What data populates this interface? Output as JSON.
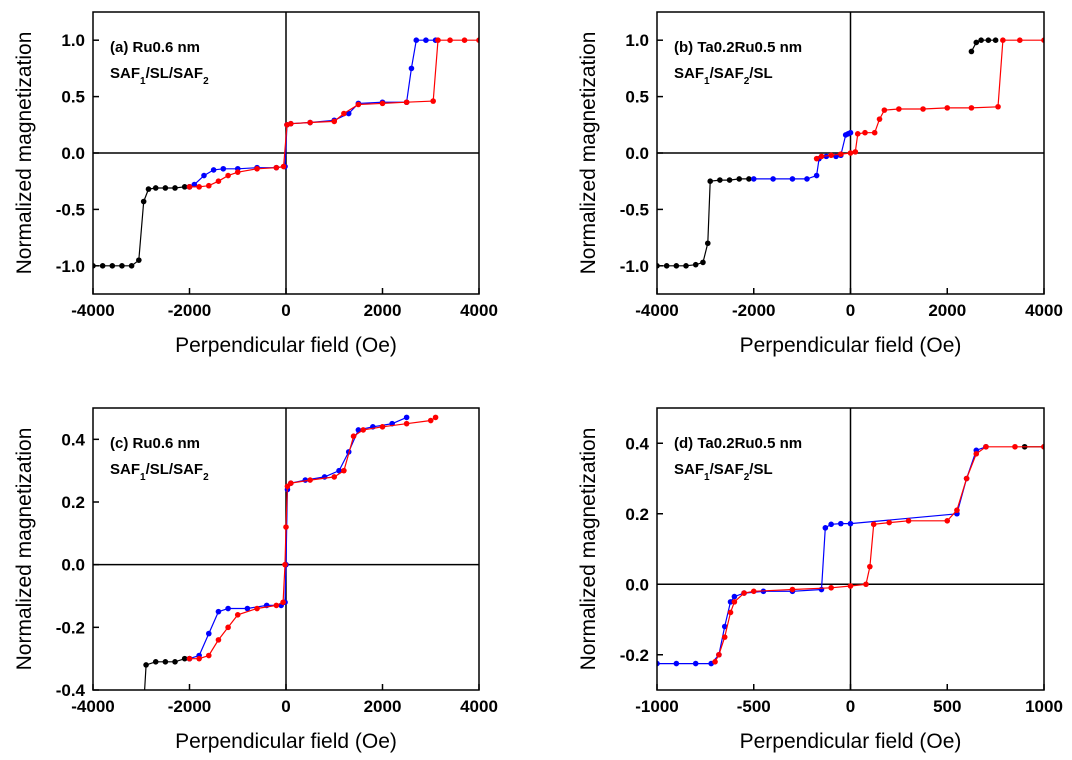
{
  "chart_data": [
    {
      "type": "line",
      "xlabel": "Perpendicular field (Oe)",
      "ylabel": "Normalized magnetization",
      "annotation": {
        "label": "(a) Ru0.6 nm",
        "stack": [
          "SAF",
          "1",
          "/SL/SAF",
          "2"
        ]
      },
      "xlim": [
        -4000,
        4000
      ],
      "ylim": [
        -1.25,
        1.25
      ],
      "xticks": [
        -4000,
        -2000,
        0,
        2000,
        4000
      ],
      "yticks": [
        {
          "value": -1,
          "label": "-1.0"
        },
        -0.5,
        {
          "value": 0,
          "label": "0.0"
        },
        0.5,
        {
          "value": 1,
          "label": "1.0"
        }
      ],
      "series": [
        {
          "color": "#000000",
          "x": [
            -4000,
            -3800,
            -3600,
            -3400,
            -3200,
            -3050,
            -2950,
            -2850,
            -2700,
            -2500,
            -2300,
            -2100,
            -2000
          ],
          "values": [
            -1,
            -1,
            -1,
            -1,
            -1,
            -0.95,
            -0.43,
            -0.32,
            -0.31,
            -0.31,
            -0.31,
            -0.3,
            -0.3
          ]
        },
        {
          "color": "#0000ff",
          "x": [
            3100,
            2900,
            2700,
            2600,
            2500,
            2000,
            1500,
            1300,
            1000,
            500,
            100,
            20,
            -20,
            -200,
            -600,
            -1000,
            -1300,
            -1500,
            -1700,
            -1900,
            -2000
          ],
          "values": [
            1,
            1,
            1,
            0.75,
            0.45,
            0.45,
            0.44,
            0.35,
            0.29,
            0.27,
            0.26,
            0.25,
            -0.12,
            -0.13,
            -0.13,
            -0.14,
            -0.14,
            -0.15,
            -0.2,
            -0.28,
            -0.3
          ]
        },
        {
          "color": "#ff0000",
          "x": [
            -2000,
            -1800,
            -1600,
            -1400,
            -1200,
            -1000,
            -600,
            -200,
            -50,
            20,
            100,
            500,
            1000,
            1200,
            1500,
            2000,
            2500,
            3050,
            3150,
            3400,
            3700,
            4000
          ],
          "values": [
            -0.3,
            -0.3,
            -0.29,
            -0.25,
            -0.2,
            -0.17,
            -0.14,
            -0.13,
            -0.12,
            0.25,
            0.26,
            0.27,
            0.28,
            0.35,
            0.43,
            0.44,
            0.45,
            0.46,
            1,
            1,
            1,
            1
          ]
        }
      ]
    },
    {
      "type": "line",
      "xlabel": "Perpendicular field (Oe)",
      "ylabel": "Normalized magnetization",
      "annotation": {
        "label": "(b) Ta0.2Ru0.5 nm",
        "stack": [
          "SAF",
          "1",
          "/SAF",
          "2",
          "/SL"
        ]
      },
      "xlim": [
        -4000,
        4000
      ],
      "ylim": [
        -1.25,
        1.25
      ],
      "xticks": [
        -4000,
        -2000,
        0,
        2000,
        4000
      ],
      "yticks": [
        {
          "value": -1,
          "label": "-1.0"
        },
        -0.5,
        {
          "value": 0,
          "label": "0.0"
        },
        0.5,
        {
          "value": 1,
          "label": "1.0"
        }
      ],
      "series": [
        {
          "color": "#000000",
          "x": [
            -4000,
            -3800,
            -3600,
            -3400,
            -3200,
            -3050,
            -2950,
            -2900,
            -2700,
            -2500,
            -2300,
            -2100
          ],
          "values": [
            -1,
            -1,
            -1,
            -1,
            -0.99,
            -0.97,
            -0.8,
            -0.25,
            -0.24,
            -0.24,
            -0.23,
            -0.23
          ]
        },
        {
          "color": "#000000",
          "x": [
            2500,
            2600,
            2700,
            2850,
            3000
          ],
          "values": [
            0.9,
            0.98,
            1,
            1,
            1
          ]
        },
        {
          "color": "#0000ff",
          "x": [
            -2000,
            -1600,
            -1200,
            -900,
            -700,
            -650,
            -500,
            -300,
            -200,
            -100,
            -50,
            0
          ],
          "values": [
            -0.23,
            -0.23,
            -0.23,
            -0.23,
            -0.2,
            -0.05,
            -0.03,
            -0.03,
            -0.02,
            0.16,
            0.17,
            0.18
          ]
        },
        {
          "color": "#ff0000",
          "x": [
            -700,
            -600,
            -400,
            -200,
            0,
            100,
            150,
            300,
            500,
            600,
            700,
            1000,
            1500,
            2000,
            2500,
            3050,
            3150,
            3500,
            4000
          ],
          "values": [
            -0.05,
            -0.03,
            -0.02,
            -0.01,
            0,
            0.01,
            0.17,
            0.18,
            0.18,
            0.3,
            0.38,
            0.39,
            0.39,
            0.4,
            0.4,
            0.41,
            1,
            1,
            1
          ]
        }
      ]
    },
    {
      "type": "line",
      "xlabel": "Perpendicular field (Oe)",
      "ylabel": "Normalized magnetization",
      "annotation": {
        "label": "(c) Ru0.6 nm",
        "stack": [
          "SAF",
          "1",
          "/SL/SAF",
          "2"
        ]
      },
      "xlim": [
        -4000,
        4000
      ],
      "ylim": [
        -0.4,
        0.5
      ],
      "xticks": [
        -4000,
        -2000,
        0,
        2000,
        4000
      ],
      "yticks": [
        -0.4,
        -0.2,
        {
          "value": 0,
          "label": "0.0"
        },
        0.2,
        0.4
      ],
      "series": [
        {
          "color": "#000000",
          "x": [
            -2950,
            -2900,
            -2700,
            -2500,
            -2300,
            -2100,
            -2000
          ],
          "values": [
            -0.45,
            -0.32,
            -0.31,
            -0.31,
            -0.31,
            -0.3,
            -0.3
          ]
        },
        {
          "color": "#0000ff",
          "x": [
            2500,
            2200,
            1800,
            1500,
            1300,
            1100,
            800,
            400,
            100,
            30,
            0,
            -20,
            -100,
            -400,
            -800,
            -1200,
            -1400,
            -1600,
            -1800,
            -2000
          ],
          "values": [
            0.47,
            0.45,
            0.44,
            0.43,
            0.36,
            0.3,
            0.28,
            0.27,
            0.26,
            0.24,
            0.0,
            -0.12,
            -0.13,
            -0.13,
            -0.14,
            -0.14,
            -0.15,
            -0.22,
            -0.29,
            -0.3
          ]
        },
        {
          "color": "#ff0000",
          "x": [
            -2000,
            -1800,
            -1600,
            -1400,
            -1200,
            -1000,
            -600,
            -200,
            -60,
            -20,
            0,
            30,
            100,
            500,
            1000,
            1200,
            1400,
            1600,
            2000,
            2500,
            3000,
            3100
          ],
          "values": [
            -0.3,
            -0.3,
            -0.29,
            -0.24,
            -0.2,
            -0.16,
            -0.14,
            -0.13,
            -0.12,
            0.0,
            0.12,
            0.25,
            0.26,
            0.27,
            0.28,
            0.3,
            0.41,
            0.43,
            0.44,
            0.45,
            0.46,
            0.47
          ]
        }
      ]
    },
    {
      "type": "line",
      "xlabel": "Perpendicular field (Oe)",
      "ylabel": "Normalized magnetization",
      "annotation": {
        "label": "(d) Ta0.2Ru0.5 nm",
        "stack": [
          "SAF",
          "1",
          "/SAF",
          "2",
          "/SL"
        ]
      },
      "xlim": [
        -1000,
        1000
      ],
      "ylim": [
        -0.3,
        0.5
      ],
      "xticks": [
        -1000,
        -500,
        0,
        500,
        1000
      ],
      "yticks": [
        -0.2,
        {
          "value": 0,
          "label": "0.0"
        },
        0.2,
        0.4
      ],
      "series": [
        {
          "color": "#000000",
          "x": [
            900,
            1000
          ],
          "values": [
            0.39,
            0.39
          ]
        },
        {
          "color": "#0000ff",
          "x": [
            -1000,
            -900,
            -800,
            -720,
            -680,
            -650,
            -620,
            -600,
            -550,
            -450,
            -300,
            -150,
            -130,
            -100,
            -50,
            0,
            550,
            600,
            650,
            700
          ],
          "values": [
            -0.225,
            -0.225,
            -0.225,
            -0.225,
            -0.2,
            -0.12,
            -0.05,
            -0.035,
            -0.025,
            -0.02,
            -0.02,
            -0.015,
            0.16,
            0.17,
            0.172,
            0.172,
            0.2,
            0.3,
            0.38,
            0.39
          ]
        },
        {
          "color": "#ff0000",
          "x": [
            -700,
            -680,
            -650,
            -620,
            -600,
            -550,
            -500,
            -300,
            -100,
            0,
            80,
            100,
            120,
            200,
            300,
            500,
            550,
            600,
            650,
            700,
            850,
            1000
          ],
          "values": [
            -0.22,
            -0.2,
            -0.15,
            -0.08,
            -0.05,
            -0.025,
            -0.02,
            -0.015,
            -0.01,
            -0.005,
            0.0,
            0.05,
            0.17,
            0.175,
            0.18,
            0.18,
            0.21,
            0.3,
            0.37,
            0.39,
            0.39,
            0.39
          ]
        }
      ]
    }
  ]
}
